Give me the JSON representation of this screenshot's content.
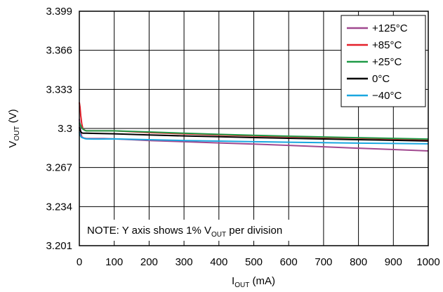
{
  "chart_data": {
    "type": "line",
    "xlabel_main": "I",
    "xlabel_sub": "OUT",
    "xlabel_unit": " (mA)",
    "ylabel_main": "V",
    "ylabel_sub": "OUT",
    "ylabel_unit": " (V)",
    "xlim": [
      0,
      1000
    ],
    "ylim": [
      3.201,
      3.399
    ],
    "x_ticks": [
      0,
      100,
      200,
      300,
      400,
      500,
      600,
      700,
      800,
      900,
      1000
    ],
    "x_tick_labels": [
      "0",
      "100",
      "200",
      "300",
      "400",
      "500",
      "600",
      "700",
      "800",
      "900",
      "1000"
    ],
    "y_ticks": [
      3.201,
      3.234,
      3.267,
      3.3,
      3.333,
      3.366,
      3.399
    ],
    "y_tick_labels": [
      "3.201",
      "3.234",
      "3.267",
      "3.3",
      "3.333",
      "3.366",
      "3.399"
    ],
    "grid": true,
    "legend_position": "top-right",
    "note_prefix": "NOTE: Y axis shows 1% V",
    "note_sub": "OUT",
    "note_suffix": " per division",
    "series": [
      {
        "name": "+125°C",
        "color": "#a0488f",
        "x": [
          0,
          2,
          4,
          7,
          12,
          20,
          40,
          70,
          100,
          150,
          200,
          300,
          400,
          500,
          600,
          700,
          800,
          900,
          1000
        ],
        "y": [
          3.308,
          3.303,
          3.297,
          3.293,
          3.292,
          3.2915,
          3.2915,
          3.2915,
          3.2912,
          3.2905,
          3.2898,
          3.2888,
          3.2878,
          3.2868,
          3.2857,
          3.2845,
          3.2833,
          3.2822,
          3.281
        ]
      },
      {
        "name": "+85°C",
        "color": "#e4202a",
        "x": [
          0,
          2,
          4,
          7,
          10,
          15,
          20,
          50,
          100,
          200,
          300,
          400,
          500,
          600,
          700,
          800,
          900,
          1000
        ],
        "y": [
          3.322,
          3.318,
          3.311,
          3.304,
          3.3,
          3.2985,
          3.298,
          3.298,
          3.298,
          3.2965,
          3.2955,
          3.2945,
          3.2937,
          3.293,
          3.2924,
          3.2918,
          3.2912,
          3.2905
        ]
      },
      {
        "name": "+25°C",
        "color": "#1f9a47",
        "x": [
          0,
          3,
          6,
          10,
          15,
          20,
          50,
          100,
          200,
          300,
          400,
          500,
          600,
          700,
          800,
          900,
          1000
        ],
        "y": [
          3.305,
          3.303,
          3.301,
          3.2995,
          3.2985,
          3.298,
          3.298,
          3.298,
          3.297,
          3.296,
          3.295,
          3.2942,
          3.2935,
          3.2928,
          3.2922,
          3.2916,
          3.291
        ]
      },
      {
        "name": "0°C",
        "color": "#000000",
        "x": [
          0,
          3,
          6,
          10,
          20,
          50,
          100,
          200,
          300,
          400,
          500,
          600,
          700,
          800,
          900,
          1000
        ],
        "y": [
          3.301,
          3.298,
          3.2965,
          3.296,
          3.296,
          3.2958,
          3.2955,
          3.2945,
          3.2937,
          3.293,
          3.2923,
          3.2917,
          3.2911,
          3.2905,
          3.29,
          3.2894
        ]
      },
      {
        "name": "−40°C",
        "color": "#1aa7e0",
        "x": [
          0,
          3,
          6,
          10,
          15,
          20,
          40,
          60,
          100,
          200,
          300,
          400,
          500,
          600,
          700,
          800,
          900,
          1000
        ],
        "y": [
          3.297,
          3.294,
          3.2925,
          3.292,
          3.2915,
          3.2912,
          3.291,
          3.291,
          3.2912,
          3.2905,
          3.2898,
          3.2893,
          3.2888,
          3.2884,
          3.288,
          3.2876,
          3.2873,
          3.287
        ]
      }
    ]
  }
}
